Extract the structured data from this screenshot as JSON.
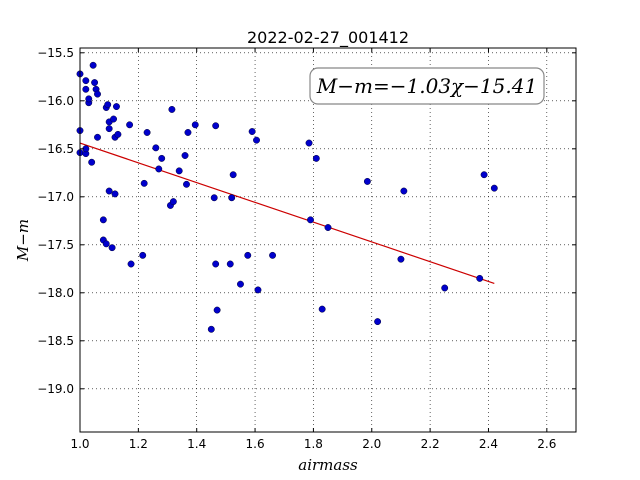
{
  "chart_data": {
    "type": "scatter",
    "title": "2022-02-27_001412",
    "xlabel": "airmass",
    "ylabel": "M−m",
    "xlim": [
      1.0,
      2.7
    ],
    "ylim": [
      -15.45,
      -19.45
    ],
    "y_inverted": true,
    "grid": true,
    "x_ticks": [
      1.0,
      1.2,
      1.4,
      1.6,
      1.8,
      2.0,
      2.2,
      2.4,
      2.6
    ],
    "x_tick_labels": [
      "1.0",
      "1.2",
      "1.4",
      "1.6",
      "1.8",
      "2.0",
      "2.2",
      "2.4",
      "2.6"
    ],
    "y_ticks": [
      -15.5,
      -16.0,
      -16.5,
      -17.0,
      -17.5,
      -18.0,
      -18.5,
      -19.0
    ],
    "y_tick_labels": [
      "−15.5",
      "−16.0",
      "−16.5",
      "−17.0",
      "−17.5",
      "−18.0",
      "−18.5",
      "−19.0"
    ],
    "annotation": "M−m=−1.03χ−15.41",
    "point_color": "#0000cc",
    "fit_color": "#cc0000",
    "fit_line": {
      "slope": -1.03,
      "intercept": -15.41,
      "x_range": [
        1.0,
        2.42
      ]
    },
    "points": [
      [
        1.0,
        -15.72
      ],
      [
        1.0,
        -16.31
      ],
      [
        1.0,
        -16.54
      ],
      [
        1.02,
        -15.79
      ],
      [
        1.02,
        -15.88
      ],
      [
        1.02,
        -16.55
      ],
      [
        1.02,
        -16.5
      ],
      [
        1.03,
        -16.02
      ],
      [
        1.03,
        -15.98
      ],
      [
        1.04,
        -16.64
      ],
      [
        1.045,
        -15.63
      ],
      [
        1.05,
        -15.81
      ],
      [
        1.055,
        -15.88
      ],
      [
        1.06,
        -15.93
      ],
      [
        1.06,
        -16.38
      ],
      [
        1.08,
        -17.24
      ],
      [
        1.08,
        -17.45
      ],
      [
        1.09,
        -17.49
      ],
      [
        1.09,
        -16.07
      ],
      [
        1.095,
        -16.04
      ],
      [
        1.1,
        -16.22
      ],
      [
        1.1,
        -16.29
      ],
      [
        1.1,
        -16.94
      ],
      [
        1.11,
        -17.53
      ],
      [
        1.115,
        -16.19
      ],
      [
        1.12,
        -16.38
      ],
      [
        1.12,
        -16.97
      ],
      [
        1.125,
        -16.06
      ],
      [
        1.13,
        -16.35
      ],
      [
        1.17,
        -16.25
      ],
      [
        1.175,
        -17.7
      ],
      [
        1.215,
        -17.61
      ],
      [
        1.22,
        -16.86
      ],
      [
        1.23,
        -16.33
      ],
      [
        1.26,
        -16.49
      ],
      [
        1.27,
        -16.71
      ],
      [
        1.28,
        -16.6
      ],
      [
        1.31,
        -17.09
      ],
      [
        1.315,
        -16.09
      ],
      [
        1.32,
        -17.05
      ],
      [
        1.34,
        -16.73
      ],
      [
        1.36,
        -16.57
      ],
      [
        1.365,
        -16.87
      ],
      [
        1.37,
        -16.33
      ],
      [
        1.395,
        -16.25
      ],
      [
        1.45,
        -18.38
      ],
      [
        1.46,
        -17.01
      ],
      [
        1.465,
        -16.26
      ],
      [
        1.465,
        -17.7
      ],
      [
        1.47,
        -18.18
      ],
      [
        1.515,
        -17.7
      ],
      [
        1.52,
        -17.01
      ],
      [
        1.525,
        -16.77
      ],
      [
        1.55,
        -17.91
      ],
      [
        1.575,
        -17.61
      ],
      [
        1.59,
        -16.32
      ],
      [
        1.605,
        -16.41
      ],
      [
        1.61,
        -17.97
      ],
      [
        1.66,
        -17.61
      ],
      [
        1.785,
        -16.44
      ],
      [
        1.79,
        -17.24
      ],
      [
        1.81,
        -16.6
      ],
      [
        1.83,
        -18.17
      ],
      [
        1.85,
        -17.32
      ],
      [
        1.985,
        -16.84
      ],
      [
        2.02,
        -18.3
      ],
      [
        2.1,
        -17.65
      ],
      [
        2.11,
        -16.94
      ],
      [
        2.25,
        -17.95
      ],
      [
        2.37,
        -17.85
      ],
      [
        2.385,
        -16.77
      ],
      [
        2.42,
        -16.91
      ]
    ]
  }
}
